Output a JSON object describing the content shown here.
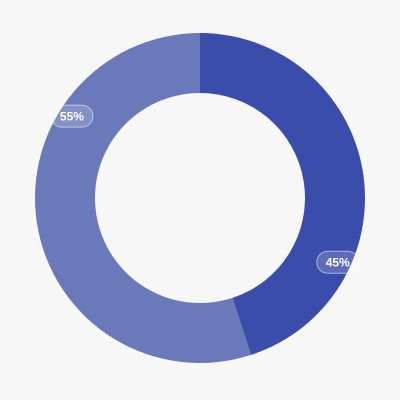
{
  "chart_data": {
    "type": "donut",
    "values": [
      45,
      55
    ],
    "value_labels": [
      "45%",
      "55%"
    ],
    "colors": [
      "#3a4dab",
      "#6a79b9"
    ]
  }
}
